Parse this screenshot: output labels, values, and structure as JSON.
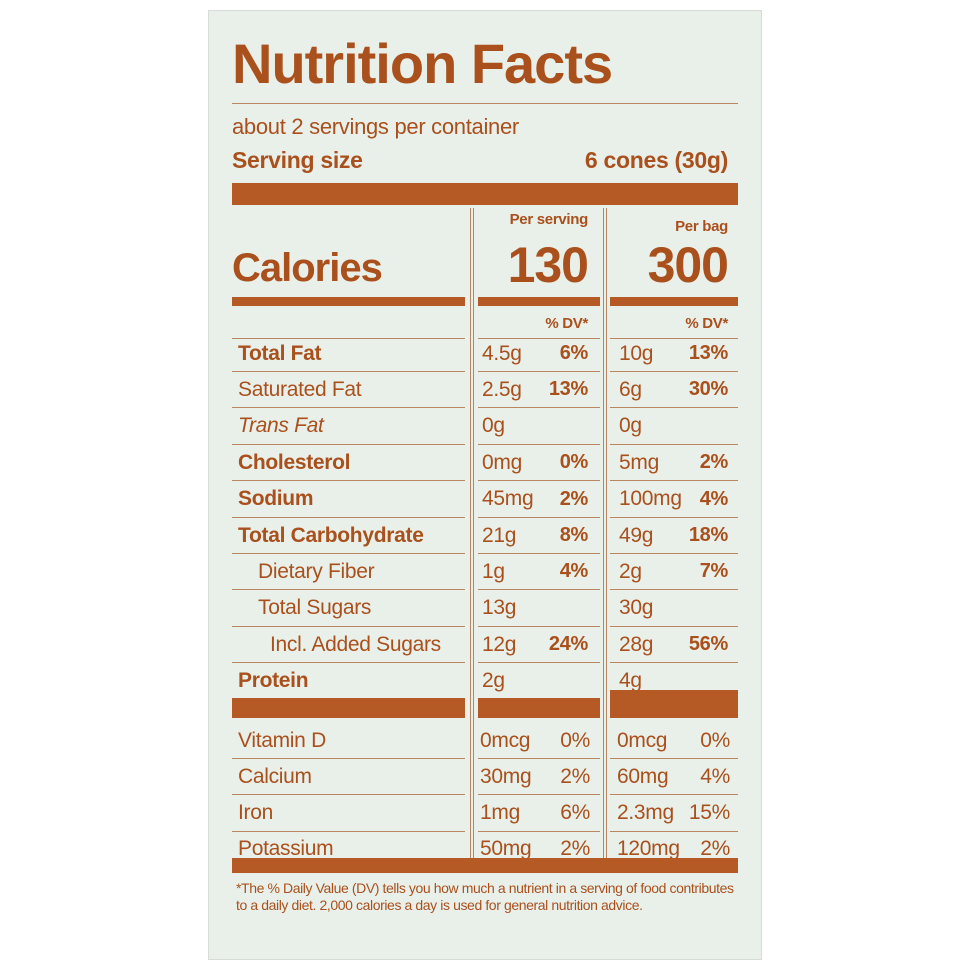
{
  "label": {
    "title": "Nutrition Facts",
    "servings": "about 2 servings per container",
    "serving_size_label": "Serving size",
    "serving_size_value": "6 cones (30g)",
    "calories_label": "Calories",
    "columns": [
      {
        "header": "Per serving",
        "calories": "130",
        "dv_header": "% DV*"
      },
      {
        "header": "Per bag",
        "calories": "300",
        "dv_header": "% DV*"
      }
    ],
    "nutrients": [
      {
        "name": "Total Fat",
        "amounts": [
          {
            "amount": "4.5g",
            "dv": "6%"
          },
          {
            "amount": "10g",
            "dv": "13%"
          }
        ]
      },
      {
        "name": "Saturated Fat",
        "amounts": [
          {
            "amount": "2.5g",
            "dv": "13%"
          },
          {
            "amount": "6g",
            "dv": "30%"
          }
        ]
      },
      {
        "name": "Trans Fat",
        "amounts": [
          {
            "amount": "0g"
          },
          {
            "amount": "0g"
          }
        ]
      },
      {
        "name": "Cholesterol",
        "amounts": [
          {
            "amount": "0mg",
            "dv": "0%"
          },
          {
            "amount": "5mg",
            "dv": "2%"
          }
        ]
      },
      {
        "name": "Sodium",
        "amounts": [
          {
            "amount": "45mg",
            "dv": "2%"
          },
          {
            "amount": "100mg",
            "dv": "4%"
          }
        ]
      },
      {
        "name": "Total Carbohydrate",
        "amounts": [
          {
            "amount": "21g",
            "dv": "8%"
          },
          {
            "amount": "49g",
            "dv": "18%"
          }
        ]
      },
      {
        "name": "Dietary Fiber",
        "amounts": [
          {
            "amount": "1g",
            "dv": "4%"
          },
          {
            "amount": "2g",
            "dv": "7%"
          }
        ]
      },
      {
        "name": "Total Sugars",
        "amounts": [
          {
            "amount": "13g"
          },
          {
            "amount": "30g"
          }
        ]
      },
      {
        "name": "Incl. Added Sugars",
        "amounts": [
          {
            "amount": "12g",
            "dv": "24%"
          },
          {
            "amount": "28g",
            "dv": "56%"
          }
        ]
      },
      {
        "name": "Protein",
        "amounts": [
          {
            "amount": "2g"
          },
          {
            "amount": "4g"
          }
        ]
      }
    ],
    "vitamins": [
      {
        "name": "Vitamin D",
        "amounts": [
          {
            "amount": "0mcg",
            "dv": "0%"
          },
          {
            "amount": "0mcg",
            "dv": "0%"
          }
        ]
      },
      {
        "name": "Calcium",
        "amounts": [
          {
            "amount": "30mg",
            "dv": "2%"
          },
          {
            "amount": "60mg",
            "dv": "4%"
          }
        ]
      },
      {
        "name": "Iron",
        "amounts": [
          {
            "amount": "1mg",
            "dv": "6%"
          },
          {
            "amount": "2.3mg",
            "dv": "15%"
          }
        ]
      },
      {
        "name": "Potassium",
        "amounts": [
          {
            "amount": "50mg",
            "dv": "2%"
          },
          {
            "amount": "120mg",
            "dv": "2%"
          }
        ]
      }
    ],
    "footnote": "*The % Daily Value (DV) tells you how much a nutrient in a serving of food contributes to a daily diet. 2,000 calories a day is used for general nutrition advice."
  }
}
